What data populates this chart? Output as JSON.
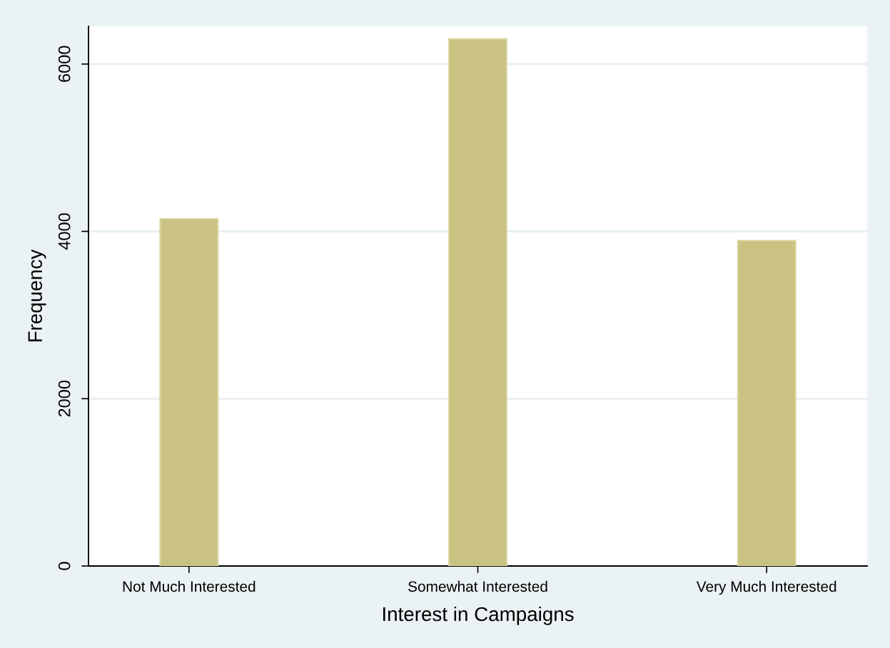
{
  "chart_data": {
    "type": "bar",
    "xlabel": "Interest in Campaigns",
    "ylabel": "Frequency",
    "categories": [
      "Not Much Interested",
      "Somewhat Interested",
      "Very Much Interested"
    ],
    "values": [
      4150,
      6300,
      3890
    ],
    "color": "#cac282",
    "ylim": [
      0,
      6450
    ],
    "yticks": [
      0,
      2000,
      4000,
      6000
    ],
    "grid": "y"
  }
}
